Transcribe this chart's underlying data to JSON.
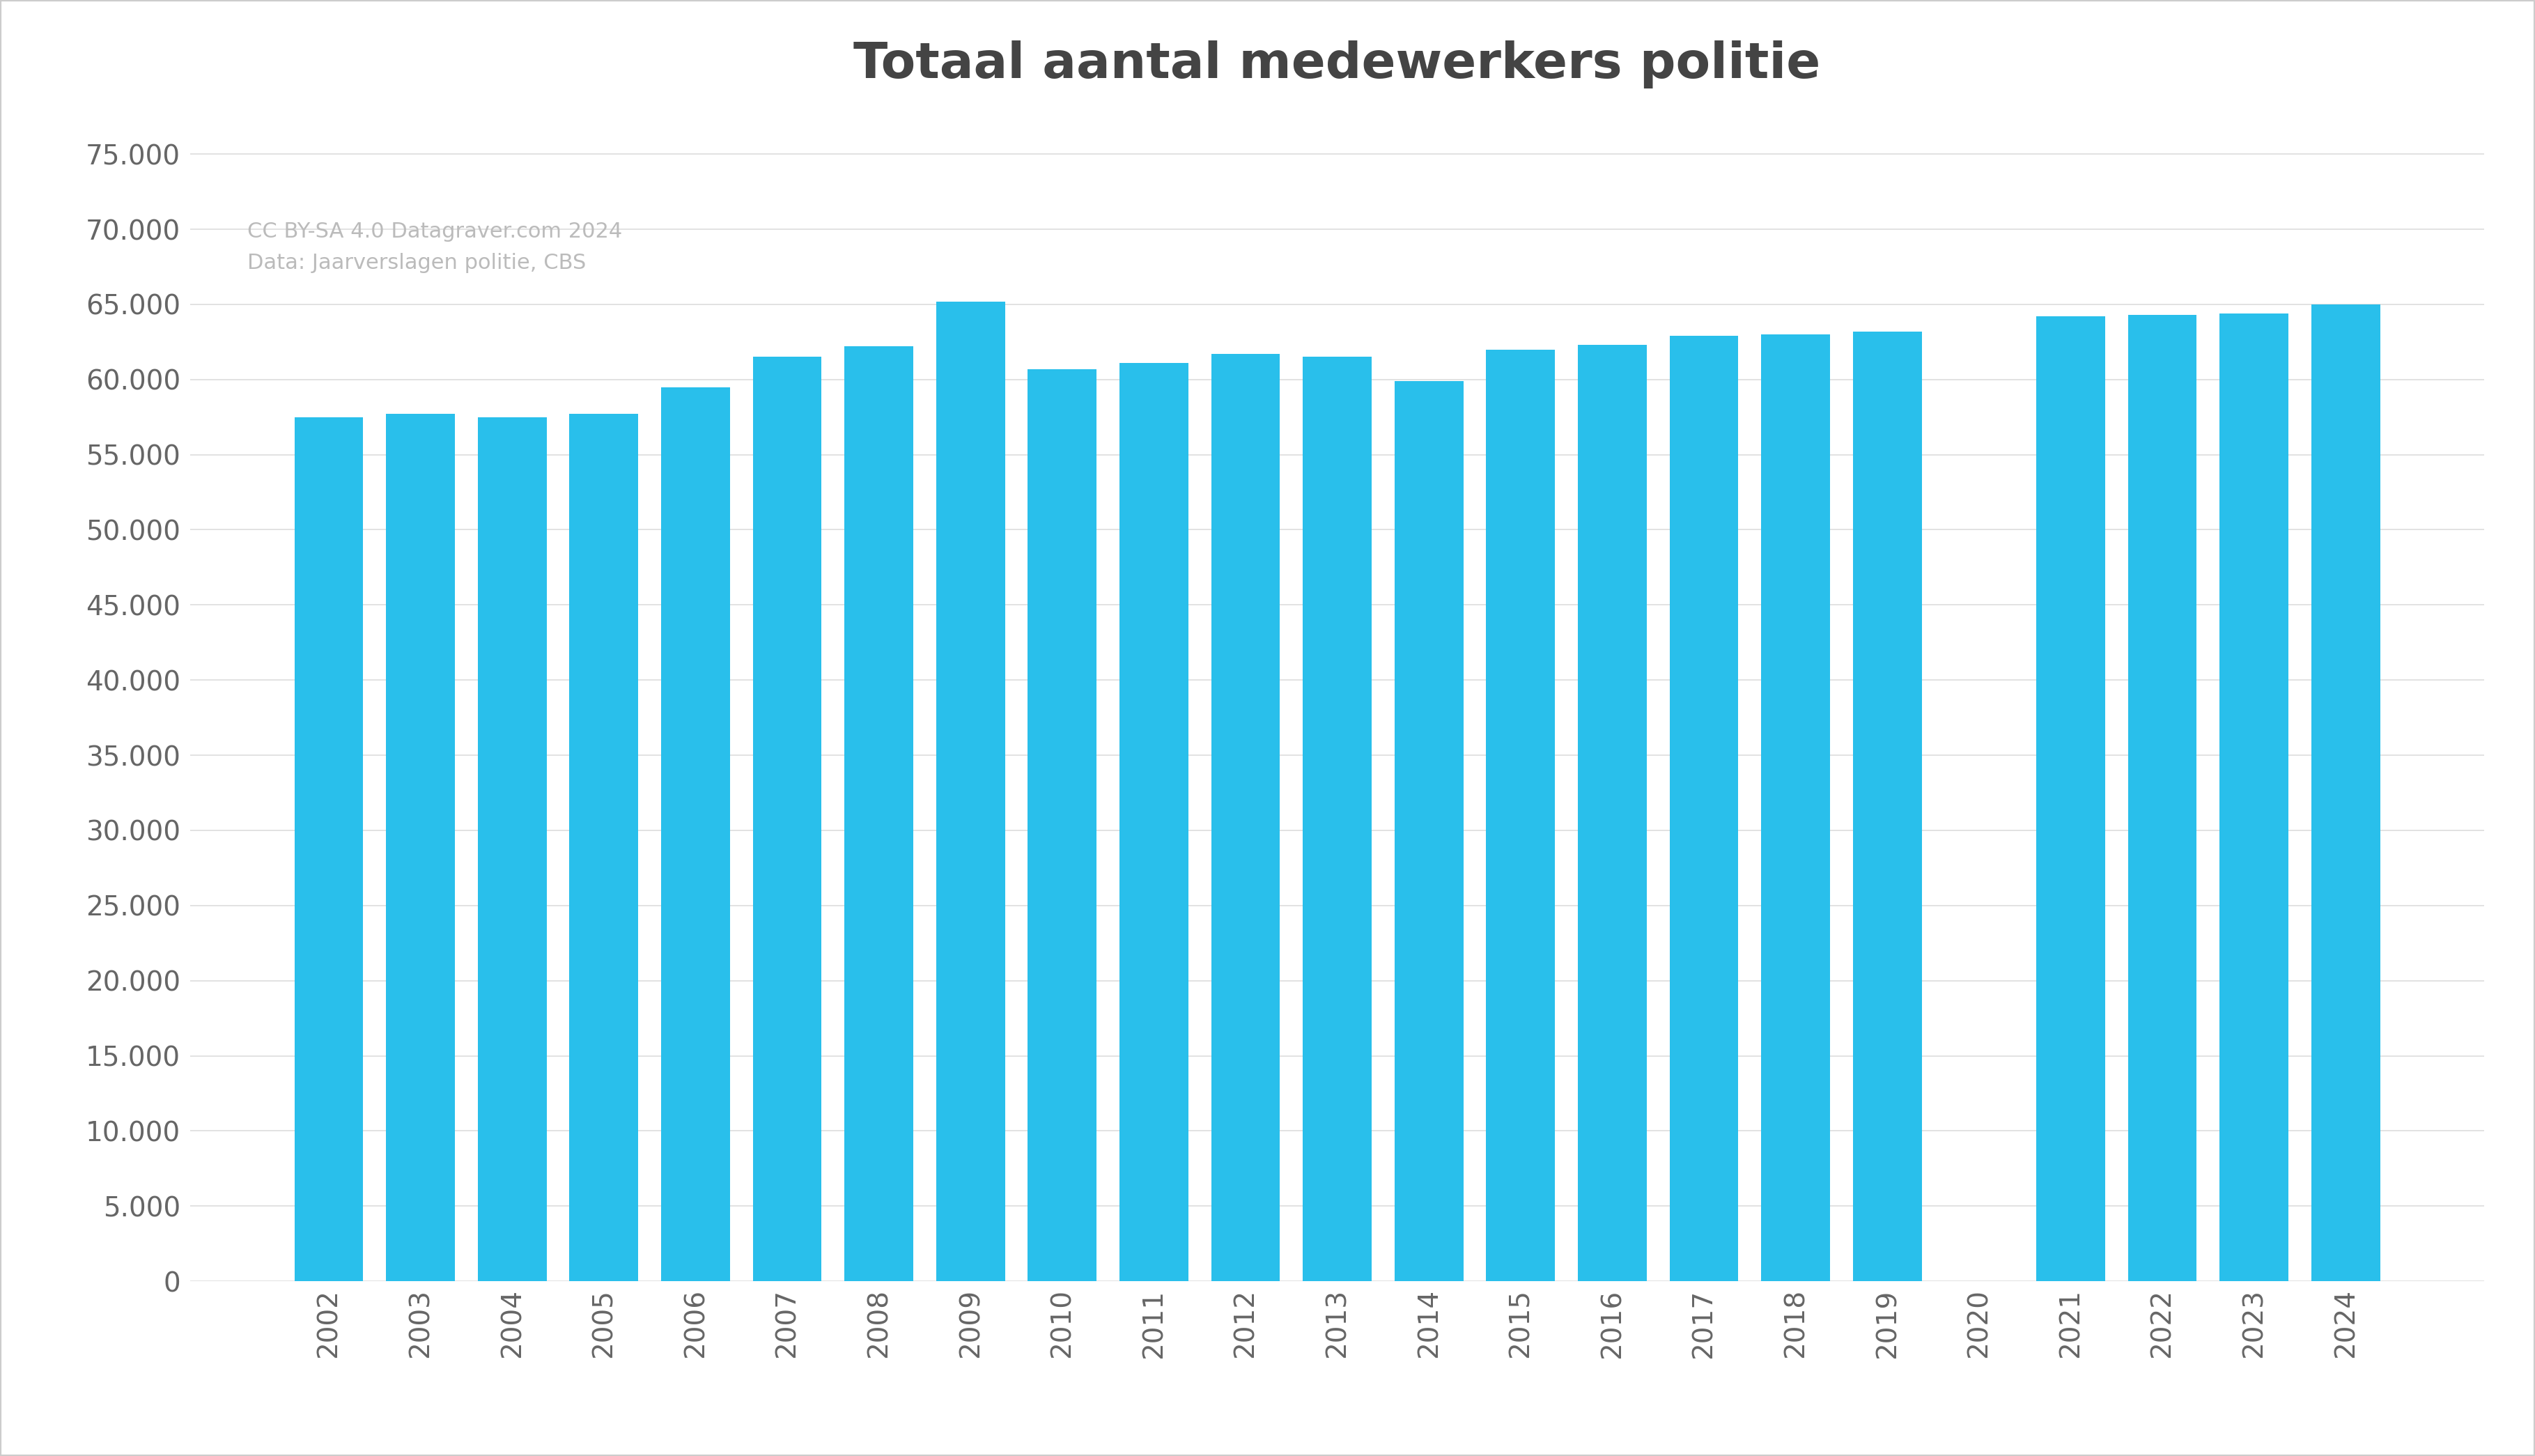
{
  "title": "Totaal aantal medewerkers politie",
  "categories": [
    "2002",
    "2003",
    "2004",
    "2005",
    "2006",
    "2007",
    "2008",
    "2009",
    "2010",
    "2011",
    "2012",
    "2013",
    "2014",
    "2015",
    "2016",
    "2017",
    "2018",
    "2019",
    "2020",
    "2021",
    "2022",
    "2023",
    "2024"
  ],
  "values": [
    57500,
    57700,
    57500,
    57700,
    59500,
    61500,
    62200,
    65200,
    60700,
    61100,
    61700,
    61500,
    59900,
    62000,
    62300,
    62900,
    63000,
    63200,
    null,
    64200,
    64300,
    64400,
    65000
  ],
  "bar_color": "#29BFEB",
  "background_color": "#ffffff",
  "grid_color": "#dddddd",
  "title_color": "#444444",
  "tick_color": "#666666",
  "watermark_line1": "CC BY-SA 4.0 Datagraver.com 2024",
  "watermark_line2": "Data: Jaarverslagen politie, CBS",
  "watermark_color": "#bbbbbb",
  "border_color": "#cccccc",
  "ylim": [
    0,
    77500
  ],
  "yticks": [
    0,
    5000,
    10000,
    15000,
    20000,
    25000,
    30000,
    35000,
    40000,
    45000,
    50000,
    55000,
    60000,
    65000,
    70000,
    75000
  ],
  "title_fontsize": 52,
  "tick_fontsize": 28,
  "watermark_fontsize": 22
}
